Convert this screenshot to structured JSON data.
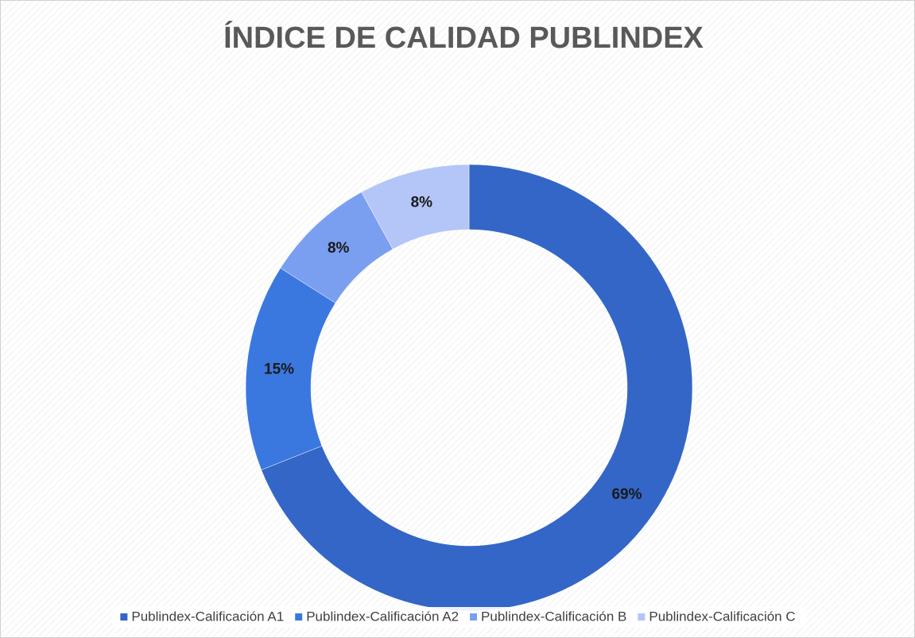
{
  "chart_data": {
    "type": "donut",
    "title": "ÍNDICE DE CALIDAD PUBLINDEX",
    "categories": [
      "Publindex-Calificación A1",
      "Publindex-Calificación A2",
      "Publindex-Calificación B",
      "Publindex-Calificación C"
    ],
    "values": [
      69,
      15,
      8,
      8
    ],
    "value_labels": [
      "69%",
      "15%",
      "8%",
      "8%"
    ],
    "colors": [
      "#3366c6",
      "#3a78e0",
      "#7a9ef0",
      "#b4c6f8"
    ],
    "legend": "bottom"
  }
}
